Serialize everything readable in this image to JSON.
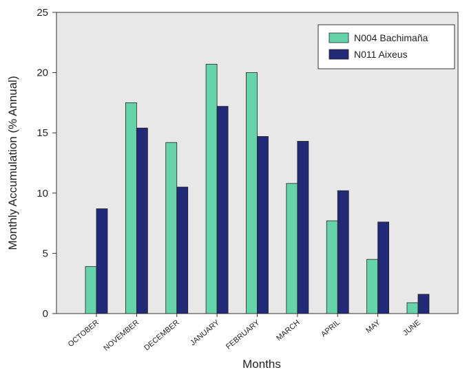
{
  "chart_data": {
    "type": "bar",
    "x_label": "Months",
    "y_label": "Monthly Accumulation (% Annual)",
    "categories": [
      "OCTOBER",
      "NOVEMBER",
      "DECEMBER",
      "JANUARY",
      "FEBRUARY",
      "MARCH",
      "APRIL",
      "MAY",
      "JUNE"
    ],
    "series": [
      {
        "name": "N004 Bachimaña",
        "color": "#66d3aa",
        "values": [
          3.9,
          17.5,
          14.2,
          20.7,
          20.0,
          10.8,
          7.7,
          4.5,
          0.9
        ]
      },
      {
        "name": "N011 Aixeus",
        "color": "#222a78",
        "values": [
          8.7,
          15.4,
          10.5,
          17.2,
          14.7,
          14.3,
          10.2,
          7.6,
          1.6
        ]
      }
    ],
    "ylim": [
      0,
      25
    ],
    "yticks": [
      0,
      5,
      10,
      15,
      20,
      25
    ],
    "legend": "upper right"
  }
}
